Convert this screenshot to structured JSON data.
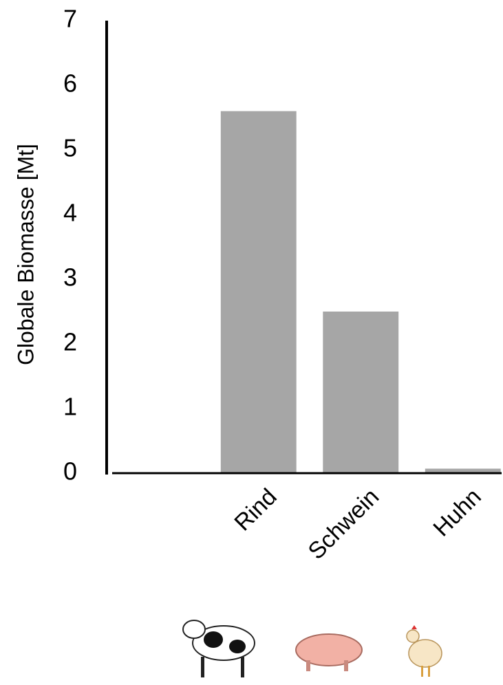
{
  "chart_data": {
    "type": "bar",
    "y_label": "Globale Biomasse [Mt]",
    "categories": [
      null,
      "Rind",
      "Schwein",
      "Huhn"
    ],
    "values": [
      0,
      5.6,
      2.5,
      0.07
    ],
    "color": "#a6a6a6",
    "ylim": [
      0,
      7
    ],
    "yticks": [
      0,
      1,
      2,
      3,
      4,
      5,
      6,
      7
    ],
    "grid": false
  }
}
